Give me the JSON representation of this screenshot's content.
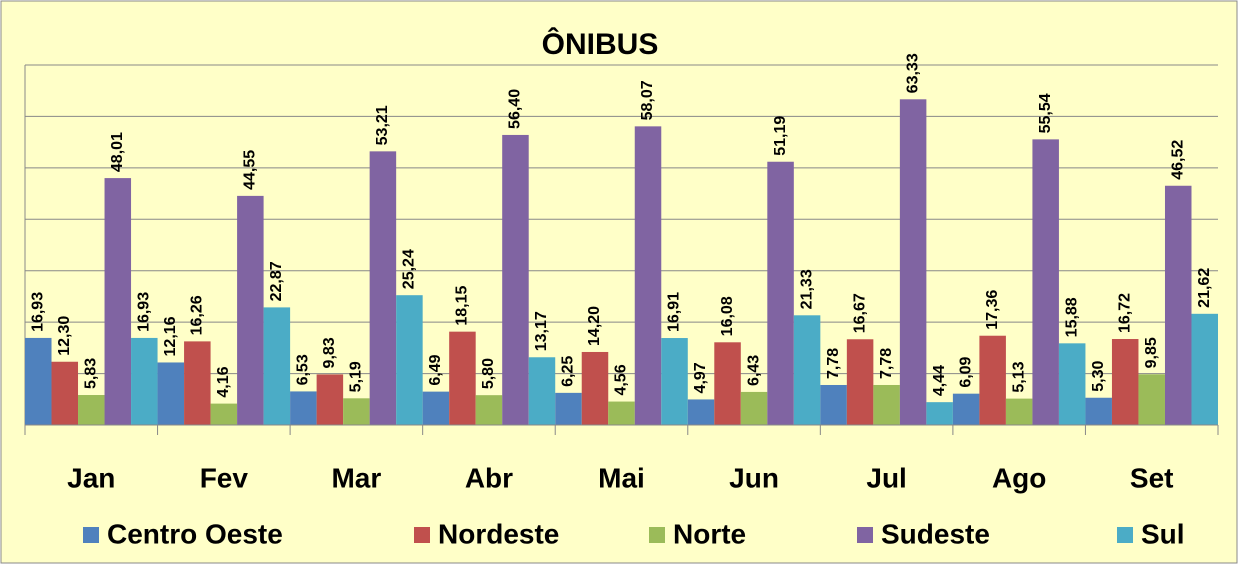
{
  "chart_data": {
    "type": "bar",
    "title": "ÔNIBUS",
    "categories": [
      "Jan",
      "Fev",
      "Mar",
      "Abr",
      "Mai",
      "Jun",
      "Jul",
      "Ago",
      "Set"
    ],
    "series": [
      {
        "name": "Centro Oeste",
        "color": "#4f81bd",
        "values": [
          16.93,
          12.16,
          6.53,
          6.49,
          6.25,
          4.97,
          7.78,
          6.09,
          5.3
        ],
        "value_labels": [
          "16,93",
          "12,16",
          "6,53",
          "6,49",
          "6,25",
          "4,97",
          "7,78",
          "6,09",
          "5,30"
        ]
      },
      {
        "name": "Nordeste",
        "color": "#c0504d",
        "values": [
          12.3,
          16.26,
          9.83,
          18.15,
          14.2,
          16.08,
          16.67,
          17.36,
          16.72
        ],
        "value_labels": [
          "12,30",
          "16,26",
          "9,83",
          "18,15",
          "14,20",
          "16,08",
          "16,67",
          "17,36",
          "16,72"
        ]
      },
      {
        "name": "Norte",
        "color": "#9bbb59",
        "values": [
          5.83,
          4.16,
          5.19,
          5.8,
          4.56,
          6.43,
          7.78,
          5.13,
          9.85
        ],
        "value_labels": [
          "5,83",
          "4,16",
          "5,19",
          "5,80",
          "4,56",
          "6,43",
          "7,78",
          "5,13",
          "9,85"
        ]
      },
      {
        "name": "Sudeste",
        "color": "#8064a2",
        "values": [
          48.01,
          44.55,
          53.21,
          56.4,
          58.07,
          51.19,
          63.33,
          55.54,
          46.52
        ],
        "value_labels": [
          "48,01",
          "44,55",
          "53,21",
          "56,40",
          "58,07",
          "51,19",
          "63,33",
          "55,54",
          "46,52"
        ]
      },
      {
        "name": "Sul",
        "color": "#4bacc6",
        "values": [
          16.93,
          22.87,
          25.24,
          13.17,
          16.91,
          21.33,
          4.44,
          15.88,
          21.62
        ],
        "value_labels": [
          "16,93",
          "22,87",
          "25,24",
          "13,17",
          "16,91",
          "21,33",
          "4,44",
          "15,88",
          "21,62"
        ]
      }
    ],
    "ylim": [
      0,
      70
    ],
    "yticks": [
      0,
      10,
      20,
      30,
      40,
      50,
      60,
      70
    ],
    "grid": true
  }
}
